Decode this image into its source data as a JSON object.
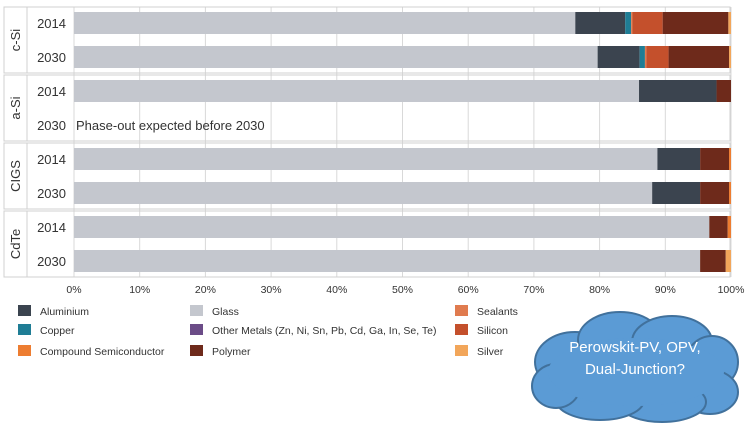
{
  "chart_data": {
    "type": "bar",
    "orientation": "horizontal",
    "stacked": true,
    "xlim": [
      0,
      100
    ],
    "x_ticks": [
      "0%",
      "10%",
      "20%",
      "30%",
      "40%",
      "50%",
      "60%",
      "70%",
      "80%",
      "90%",
      "100%"
    ],
    "grid": true,
    "legend_position": "bottom-left",
    "groups": [
      {
        "name": "c-Si",
        "rows": [
          {
            "label": "2014",
            "segments": [
              {
                "material": "Glass",
                "value": 76.3
              },
              {
                "material": "Aluminium",
                "value": 7.6
              },
              {
                "material": "Copper",
                "value": 0.9
              },
              {
                "material": "Sealants",
                "value": 0.2
              },
              {
                "material": "Silicon",
                "value": 4.6
              },
              {
                "material": "Polymer",
                "value": 10.0
              },
              {
                "material": "Silver",
                "value": 0.4
              }
            ]
          },
          {
            "label": "2030",
            "segments": [
              {
                "material": "Glass",
                "value": 79.7
              },
              {
                "material": "Aluminium",
                "value": 6.4
              },
              {
                "material": "Copper",
                "value": 0.8
              },
              {
                "material": "Sealants",
                "value": 0.2
              },
              {
                "material": "Silicon",
                "value": 3.4
              },
              {
                "material": "Polymer",
                "value": 9.2
              },
              {
                "material": "Silver",
                "value": 0.3
              }
            ]
          }
        ]
      },
      {
        "name": "a-Si",
        "rows": [
          {
            "label": "2014",
            "segments": [
              {
                "material": "Glass",
                "value": 86.0
              },
              {
                "material": "Aluminium",
                "value": 11.8
              },
              {
                "material": "Polymer",
                "value": 2.2
              }
            ]
          },
          {
            "label": "2030",
            "note": "Phase-out expected before 2030",
            "segments": []
          }
        ]
      },
      {
        "name": "CIGS",
        "rows": [
          {
            "label": "2014",
            "segments": [
              {
                "material": "Glass",
                "value": 88.8
              },
              {
                "material": "Aluminium",
                "value": 6.5
              },
              {
                "material": "Polymer",
                "value": 4.4
              },
              {
                "material": "Compound Semiconductor",
                "value": 0.3
              }
            ]
          },
          {
            "label": "2030",
            "segments": [
              {
                "material": "Glass",
                "value": 88.0
              },
              {
                "material": "Aluminium",
                "value": 7.3
              },
              {
                "material": "Polymer",
                "value": 4.4
              },
              {
                "material": "Compound Semiconductor",
                "value": 0.3
              }
            ]
          }
        ]
      },
      {
        "name": "CdTe",
        "rows": [
          {
            "label": "2014",
            "segments": [
              {
                "material": "Glass",
                "value": 96.7
              },
              {
                "material": "Polymer",
                "value": 2.8
              },
              {
                "material": "Compound Semiconductor",
                "value": 0.5
              }
            ]
          },
          {
            "label": "2030",
            "segments": [
              {
                "material": "Glass",
                "value": 95.3
              },
              {
                "material": "Polymer",
                "value": 3.9
              },
              {
                "material": "Silver",
                "value": 0.8
              }
            ]
          }
        ]
      }
    ],
    "legend": [
      {
        "name": "Aluminium",
        "color": "#3b444f"
      },
      {
        "name": "Glass",
        "color": "#c4c7ce"
      },
      {
        "name": "Sealants",
        "color": "#e07b4f"
      },
      {
        "name": "Copper",
        "color": "#1f7d95"
      },
      {
        "name": "Other Metals (Zn, Ni, Sn, Pb, Cd, Ga, In, Se, Te)",
        "color": "#6b4c87"
      },
      {
        "name": "Silicon",
        "color": "#c4502c"
      },
      {
        "name": "Compound Semiconductor",
        "color": "#ed7d31"
      },
      {
        "name": "Polymer",
        "color": "#6e2a1b"
      },
      {
        "name": "Silver",
        "color": "#f2a65a"
      }
    ]
  },
  "callout": {
    "lines": [
      "Perowskit-PV, OPV,",
      "Dual-Junction?"
    ],
    "color": "#5b9bd5",
    "border_color": "#41719c"
  }
}
